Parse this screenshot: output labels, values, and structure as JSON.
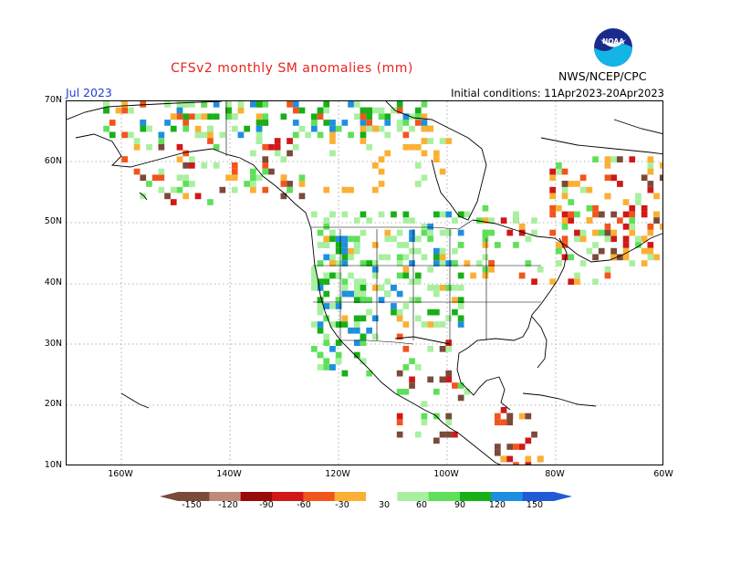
{
  "header": {
    "title": "CFSv2 monthly SM anomalies (mm)",
    "month": "Jul 2023",
    "initial_conditions": "Initial conditions: 11Apr2023-20Apr2023",
    "agency": "NWS/NCEP/CPC",
    "logo_text": "NOAA"
  },
  "axes": {
    "lat_labels": [
      "70N",
      "60N",
      "50N",
      "40N",
      "30N",
      "20N",
      "10N"
    ],
    "lon_labels": [
      "160W",
      "140W",
      "120W",
      "100W",
      "80W",
      "60W"
    ]
  },
  "colorbar": {
    "labels": [
      "-150",
      "-120",
      "-90",
      "-60",
      "-30",
      "30",
      "60",
      "90",
      "120",
      "150"
    ],
    "colors": [
      "#7a4a3a",
      "#c08a7a",
      "#9b0a0a",
      "#d01818",
      "#f2551c",
      "#fbb033",
      "#ffffff",
      "#a8f0a0",
      "#5ee05a",
      "#17b017",
      "#1e8fe0",
      "#1f5bd6"
    ]
  }
}
